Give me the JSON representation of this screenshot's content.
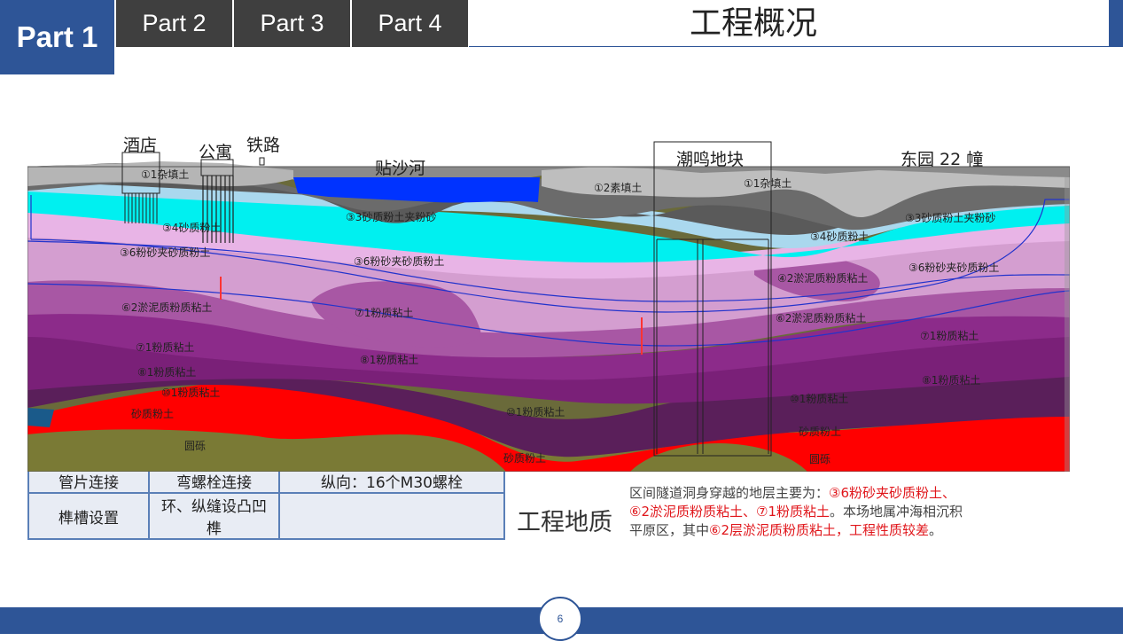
{
  "nav": {
    "active_tab": "Part 1",
    "tabs": [
      "Part 2",
      "Part 3",
      "Part 4"
    ]
  },
  "page_title": "工程概况",
  "section_title": "工程地质",
  "table": {
    "row0": [
      "管片连接",
      "弯螺栓连接",
      "纵向：16个M30螺栓"
    ],
    "row1": [
      "榫槽设置",
      "环、纵缝设凸凹榫",
      ""
    ]
  },
  "description": {
    "intro": "区间隧道洞身穿越的地层主要为：",
    "layers": "③6粉砂夹砂质粉土、⑥2淤泥质粉质粘土、⑦1粉质粘土",
    "mid": "。本场地属冲海相沉积平原区，其中",
    "weak_layer": "⑥2层淤泥质粉质粘土，工程性质较差",
    "end": "。"
  },
  "diagram": {
    "landmarks": {
      "hotel": "酒店",
      "apartment": "公寓",
      "railway": "铁路",
      "river": "贴沙河",
      "plot": "潮鸣地块",
      "building": "东园 22 幢"
    },
    "layer_labels": {
      "fill_1": "①1杂填土",
      "fill_1_right": "①1杂填土",
      "plain_fill": "①2素填土",
      "silt_33_mid": "③3砂质粉土夹粉砂",
      "silt_33_right": "③3砂质粉土夹粉砂",
      "silt_34_left": "③4砂质粉土",
      "silt_34_right": "③4砂质粉土",
      "silt_36_left": "③6粉砂夹砂质粉土",
      "silt_36_mid": "③6粉砂夹砂质粉土",
      "silt_36_right": "③6粉砂夹砂质粉土",
      "clay_42": "④2淤泥质粉质粘土",
      "clay_62_left": "⑥2淤泥质粉质粘土",
      "clay_62_right": "⑥2淤泥质粉质粘土",
      "clay_71_mid": "⑦1粉质粘土",
      "clay_71_left": "⑦1粉质粘土",
      "clay_71_right": "⑦1粉质粘土",
      "clay_81_left": "⑧1粉质粘土",
      "clay_81_mid": "⑧1粉质粘土",
      "clay_81_right": "⑧1粉质粘土",
      "clay_101_left": "⑩1粉质粘土",
      "clay_101_mid": "⑩1粉质粘土",
      "clay_101_right": "⑩1粉质粘土",
      "sand_silt_left": "砂质粉土",
      "sand_silt_mid": "砂质粉土",
      "sand_silt_right": "砂质粉土",
      "gravel_left": "圆砾",
      "gravel_right": "圆砾"
    }
  },
  "page_number": "6",
  "colors": {
    "accent": "#2e5597",
    "tab_dark": "#3f3f3f",
    "highlight_red": "#e0161b"
  }
}
